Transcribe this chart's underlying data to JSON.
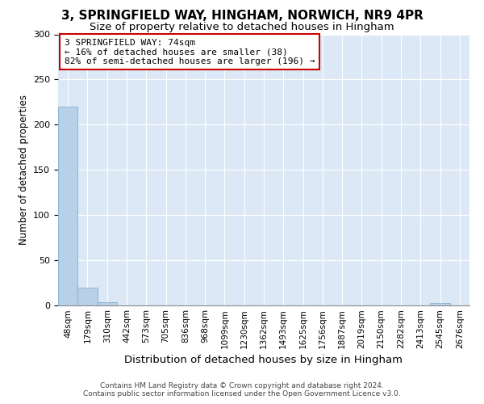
{
  "title": "3, SPRINGFIELD WAY, HINGHAM, NORWICH, NR9 4PR",
  "subtitle": "Size of property relative to detached houses in Hingham",
  "xlabel": "Distribution of detached houses by size in Hingham",
  "ylabel": "Number of detached properties",
  "footer1": "Contains HM Land Registry data © Crown copyright and database right 2024.",
  "footer2": "Contains public sector information licensed under the Open Government Licence v3.0.",
  "bin_labels": [
    "48sqm",
    "179sqm",
    "310sqm",
    "442sqm",
    "573sqm",
    "705sqm",
    "836sqm",
    "968sqm",
    "1099sqm",
    "1230sqm",
    "1362sqm",
    "1493sqm",
    "1625sqm",
    "1756sqm",
    "1887sqm",
    "2019sqm",
    "2150sqm",
    "2282sqm",
    "2413sqm",
    "2545sqm",
    "2676sqm"
  ],
  "bar_values": [
    220,
    19,
    3,
    0,
    0,
    0,
    0,
    0,
    0,
    0,
    0,
    0,
    0,
    0,
    0,
    0,
    0,
    0,
    0,
    2,
    0
  ],
  "bar_color": "#b8d0e8",
  "bar_edge_color": "#7aaac8",
  "property_label": "3 SPRINGFIELD WAY: 74sqm",
  "annotation_line1": "← 16% of detached houses are smaller (38)",
  "annotation_line2": "82% of semi-detached houses are larger (196) →",
  "annotation_box_color": "#cc0000",
  "ylim": [
    0,
    300
  ],
  "yticks": [
    0,
    50,
    100,
    150,
    200,
    250,
    300
  ],
  "bg_color": "#dce8f5",
  "grid_color": "#ffffff",
  "fig_bg_color": "#ffffff",
  "title_fontsize": 11,
  "subtitle_fontsize": 9.5,
  "xlabel_fontsize": 9.5,
  "ylabel_fontsize": 8.5,
  "tick_fontsize": 7.5,
  "annotation_fontsize": 8.0,
  "footer_fontsize": 6.5
}
